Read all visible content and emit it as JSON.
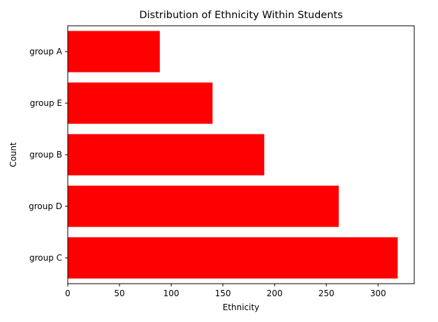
{
  "chart_data": {
    "type": "bar",
    "orientation": "horizontal",
    "title": "Distribution of Ethnicity Within Students",
    "xlabel": "Ethnicity",
    "ylabel": "Count",
    "categories": [
      "group C",
      "group D",
      "group B",
      "group E",
      "group A"
    ],
    "values": [
      319,
      262,
      190,
      140,
      89
    ],
    "xlim": [
      0,
      335
    ],
    "xticks": [
      0,
      50,
      100,
      150,
      200,
      250,
      300
    ],
    "bar_color": "#ff0000",
    "grid": false,
    "legend": "none"
  }
}
